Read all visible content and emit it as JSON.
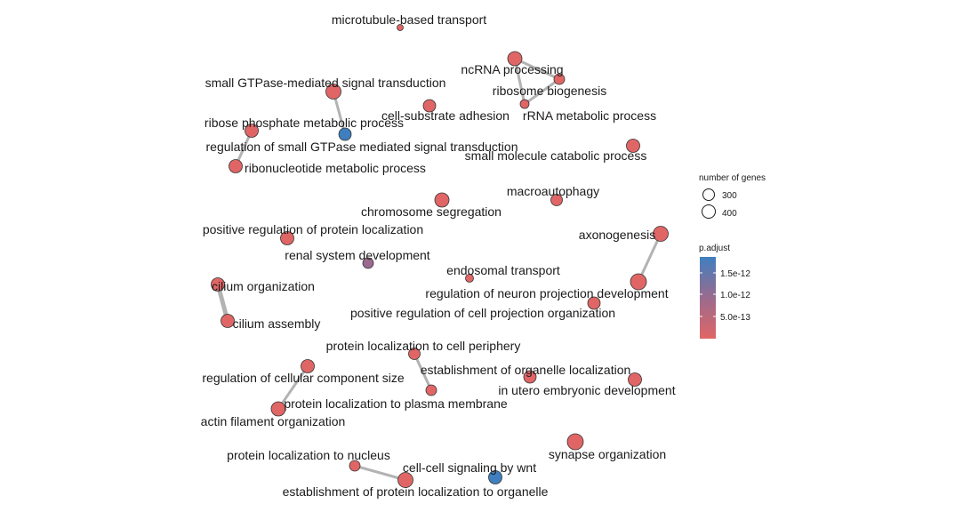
{
  "diagram": {
    "type": "enrichment-map-network",
    "edge_color": "#b3b3b3",
    "node_stroke": "#333333",
    "nodes": [
      {
        "id": "n1",
        "label": "microtubule-based transport",
        "padj": "low"
      },
      {
        "id": "n2",
        "label": "ncRNA processing",
        "padj": "low"
      },
      {
        "id": "n3",
        "label": "ribosome biogenesis",
        "padj": "low"
      },
      {
        "id": "n4",
        "label": "rRNA metabolic process",
        "padj": "low"
      },
      {
        "id": "n5",
        "label": "small GTPase-mediated signal transduction",
        "padj": "low"
      },
      {
        "id": "n6",
        "label": "cell-substrate adhesion",
        "padj": "low"
      },
      {
        "id": "n7",
        "label": "ribose phosphate metabolic process",
        "padj": "low"
      },
      {
        "id": "n8",
        "label": "regulation of small GTPase mediated signal transduction",
        "padj": "high"
      },
      {
        "id": "n9",
        "label": "ribonucleotide metabolic process",
        "padj": "low"
      },
      {
        "id": "n10",
        "label": "small molecule catabolic process",
        "padj": "low"
      },
      {
        "id": "n11",
        "label": "macroautophagy",
        "padj": "low"
      },
      {
        "id": "n12",
        "label": "chromosome segregation",
        "padj": "low"
      },
      {
        "id": "n13",
        "label": "positive regulation of protein localization",
        "padj": "low"
      },
      {
        "id": "n14",
        "label": "axonogenesis",
        "padj": "low"
      },
      {
        "id": "n15",
        "label": "renal system development",
        "padj": "mid"
      },
      {
        "id": "n16",
        "label": "endosomal transport",
        "padj": "low"
      },
      {
        "id": "n17",
        "label": "cilium organization",
        "padj": "low"
      },
      {
        "id": "n18",
        "label": "regulation of neuron projection development",
        "padj": "low"
      },
      {
        "id": "n19",
        "label": "positive regulation of cell projection organization",
        "padj": "low"
      },
      {
        "id": "n20",
        "label": "cilium assembly",
        "padj": "low"
      },
      {
        "id": "n21",
        "label": "protein localization to cell periphery",
        "padj": "low"
      },
      {
        "id": "n22",
        "label": "establishment of organelle localization",
        "padj": "low"
      },
      {
        "id": "n23",
        "label": "regulation of cellular component size",
        "padj": "low"
      },
      {
        "id": "n24",
        "label": "in utero embryonic development",
        "padj": "low"
      },
      {
        "id": "n25",
        "label": "protein localization to plasma membrane",
        "padj": "low"
      },
      {
        "id": "n26",
        "label": "actin filament organization",
        "padj": "low"
      },
      {
        "id": "n27",
        "label": "synapse organization",
        "padj": "low"
      },
      {
        "id": "n28",
        "label": "protein localization to nucleus",
        "padj": "low"
      },
      {
        "id": "n29",
        "label": "cell-cell signaling by wnt",
        "padj": "high"
      },
      {
        "id": "n30",
        "label": "establishment of protein localization to organelle",
        "padj": "low"
      }
    ],
    "edges": [
      {
        "source": "n2",
        "target": "n3"
      },
      {
        "source": "n2",
        "target": "n4"
      },
      {
        "source": "n3",
        "target": "n4"
      },
      {
        "source": "n5",
        "target": "n8"
      },
      {
        "source": "n7",
        "target": "n9"
      },
      {
        "source": "n14",
        "target": "n18"
      },
      {
        "source": "n17",
        "target": "n20"
      },
      {
        "source": "n21",
        "target": "n25"
      },
      {
        "source": "n23",
        "target": "n26"
      },
      {
        "source": "n28",
        "target": "n30"
      }
    ]
  },
  "legend": {
    "size_title": "number of genes",
    "size_items": [
      "300",
      "400"
    ],
    "color_title": "p.adjust",
    "color_ticks": [
      "1.5e-12",
      "1.0e-12",
      "5.0e-13"
    ],
    "colors": {
      "high": "#3f7fbf",
      "mid": "#9a6b8e",
      "low": "#e06666"
    }
  }
}
